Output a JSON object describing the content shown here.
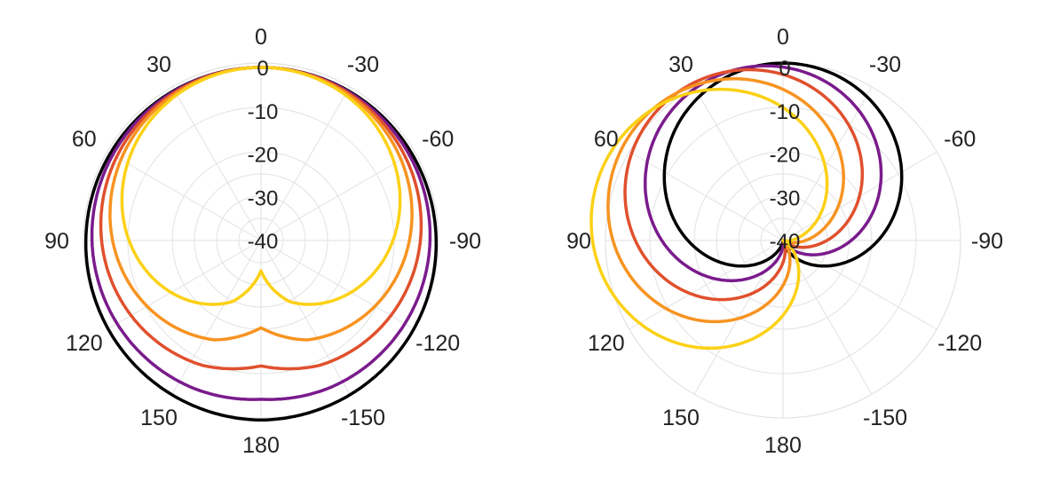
{
  "chart_data": [
    {
      "type": "polar",
      "panel": "left",
      "rlim": [
        -40,
        0
      ],
      "radial_ticks": [
        0,
        -10,
        -20,
        -30,
        -40
      ],
      "angular_ticks": [
        0,
        30,
        60,
        90,
        120,
        150,
        180,
        -150,
        -120,
        -90,
        -60,
        -30
      ],
      "angular_tick_labels": [
        "0",
        "-30",
        "-60",
        "-90",
        "-120",
        "-150",
        "180",
        "150",
        "120",
        "90",
        "60",
        "30"
      ],
      "direction": "0 at top, positive angles counter-clockwise",
      "grid": true,
      "series": [
        {
          "color": "#000000",
          "min_db": 1.5,
          "notch_depth": 0
        },
        {
          "color": "#7a1b8c",
          "min_db": -3,
          "notch_depth": 0.3
        },
        {
          "color": "#e0502d",
          "min_db": -10,
          "notch_depth": 1.0
        },
        {
          "color": "#f79321",
          "min_db": -18,
          "notch_depth": 1.8
        },
        {
          "color": "#fcd116",
          "min_db": -30,
          "notch_depth": 3.0
        }
      ]
    },
    {
      "type": "polar",
      "panel": "right",
      "rlim": [
        -40,
        0
      ],
      "radial_ticks": [
        0,
        -10,
        -20,
        -30,
        -40
      ],
      "angular_ticks": [
        0,
        30,
        60,
        90,
        120,
        150,
        180,
        -150,
        -120,
        -90,
        -60,
        -30
      ],
      "angular_tick_labels": [
        "0",
        "-30",
        "-60",
        "-90",
        "-120",
        "-150",
        "180",
        "150",
        "120",
        "90",
        "60",
        "30"
      ],
      "direction": "0 at top, positive angles counter-clockwise",
      "grid": true,
      "series": [
        {
          "color": "#000000",
          "peak_db": 1,
          "peak_angle": 0
        },
        {
          "color": "#7a1b8c",
          "peak_db": 1,
          "peak_angle": 18
        },
        {
          "color": "#e0502d",
          "peak_db": 2,
          "peak_angle": 36
        },
        {
          "color": "#f79321",
          "peak_db": 3,
          "peak_angle": 54
        },
        {
          "color": "#fcd116",
          "peak_db": 5,
          "peak_angle": 72
        }
      ]
    }
  ]
}
